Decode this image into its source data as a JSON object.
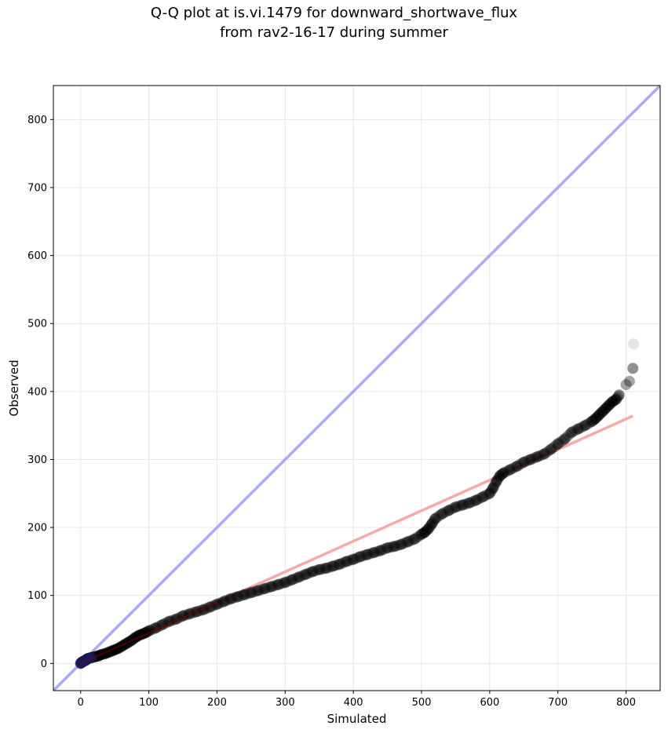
{
  "chart_data": {
    "type": "scatter",
    "title_lines": [
      "Q-Q plot at is.vi.1479 for downward_shortwave_flux",
      "from rav2-16-17 during summer"
    ],
    "xlabel": "Simulated",
    "ylabel": "Observed",
    "xlim": [
      -40,
      850
    ],
    "ylim": [
      -40,
      850
    ],
    "xticks": [
      0,
      100,
      200,
      300,
      400,
      500,
      600,
      700,
      800
    ],
    "yticks": [
      0,
      100,
      200,
      300,
      400,
      500,
      600,
      700,
      800
    ],
    "grid": true,
    "legend": "none",
    "colors": {
      "points": "#000000",
      "identity_line": "#aaaaf5",
      "fit_line": "#f7a9a9",
      "fit_line_dark": "#8b0000",
      "low_points": "#1a1a5a"
    },
    "identity_line": {
      "x": [
        -40,
        850
      ],
      "y": [
        -40,
        850
      ]
    },
    "fit_line": {
      "x": [
        0,
        810
      ],
      "y": [
        0,
        364
      ]
    },
    "quantiles": {
      "x": [
        0,
        2,
        4,
        6,
        8,
        10,
        14,
        18,
        22,
        26,
        30,
        35,
        40,
        45,
        50,
        55,
        60,
        65,
        70,
        75,
        80,
        85,
        90,
        95,
        100,
        110,
        120,
        130,
        140,
        150,
        160,
        170,
        180,
        190,
        200,
        210,
        220,
        230,
        240,
        250,
        260,
        270,
        280,
        290,
        300,
        310,
        320,
        330,
        340,
        350,
        360,
        370,
        380,
        390,
        400,
        410,
        420,
        430,
        440,
        450,
        460,
        470,
        480,
        490,
        500,
        505,
        510,
        515,
        520,
        530,
        540,
        550,
        560,
        570,
        580,
        590,
        600,
        605,
        610,
        615,
        620,
        630,
        640,
        650,
        660,
        670,
        680,
        690,
        700,
        710,
        720,
        730,
        740,
        750,
        755,
        760,
        765,
        770,
        775,
        780,
        785,
        790,
        800,
        805,
        810
      ],
      "y": [
        0,
        2,
        3,
        4,
        5,
        7,
        8,
        9,
        10,
        11,
        13,
        14,
        16,
        18,
        20,
        22,
        25,
        28,
        31,
        34,
        38,
        41,
        43,
        45,
        48,
        52,
        57,
        62,
        65,
        70,
        73,
        76,
        79,
        83,
        87,
        91,
        95,
        98,
        101,
        104,
        107,
        110,
        113,
        116,
        119,
        123,
        127,
        131,
        135,
        138,
        140,
        143,
        146,
        150,
        153,
        157,
        160,
        163,
        166,
        170,
        172,
        175,
        179,
        183,
        190,
        193,
        198,
        205,
        213,
        220,
        225,
        230,
        233,
        236,
        240,
        245,
        250,
        258,
        268,
        276,
        280,
        285,
        290,
        296,
        300,
        304,
        308,
        315,
        323,
        330,
        340,
        345,
        350,
        356,
        360,
        365,
        370,
        375,
        380,
        385,
        388,
        395,
        410,
        415,
        434
      ],
      "outlier": {
        "x": 811,
        "y": 470
      }
    }
  }
}
